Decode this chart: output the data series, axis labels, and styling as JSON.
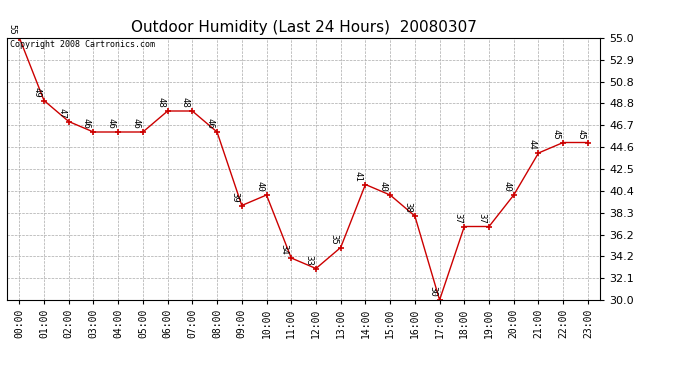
{
  "title": "Outdoor Humidity (Last 24 Hours)  20080307",
  "copyright_text": "Copyright 2008 Cartronics.com",
  "x_labels": [
    "00:00",
    "01:00",
    "02:00",
    "03:00",
    "04:00",
    "05:00",
    "06:00",
    "07:00",
    "08:00",
    "09:00",
    "10:00",
    "11:00",
    "12:00",
    "13:00",
    "14:00",
    "15:00",
    "16:00",
    "17:00",
    "18:00",
    "19:00",
    "20:00",
    "21:00",
    "22:00",
    "23:00"
  ],
  "y_values": [
    55,
    49,
    47,
    46,
    46,
    46,
    48,
    48,
    46,
    39,
    40,
    34,
    33,
    35,
    41,
    40,
    38,
    30,
    37,
    37,
    40,
    44,
    45,
    45
  ],
  "point_labels": [
    "55",
    "49",
    "47",
    "46",
    "46",
    "46",
    "48",
    "48",
    "46",
    "39",
    "40",
    "34",
    "33",
    "35",
    "41",
    "40",
    "38",
    "30",
    "37",
    "37",
    "40",
    "44",
    "45",
    "45"
  ],
  "line_color": "#cc0000",
  "marker_color": "#cc0000",
  "background_color": "#ffffff",
  "grid_color": "#aaaaaa",
  "ylim_min": 30.0,
  "ylim_max": 55.0,
  "yticks": [
    30.0,
    32.1,
    34.2,
    36.2,
    38.3,
    40.4,
    42.5,
    44.6,
    46.7,
    48.8,
    50.8,
    52.9,
    55.0
  ],
  "title_fontsize": 11,
  "label_fontsize": 6.5,
  "tick_fontsize": 7,
  "copyright_fontsize": 6,
  "ytick_fontsize": 8
}
